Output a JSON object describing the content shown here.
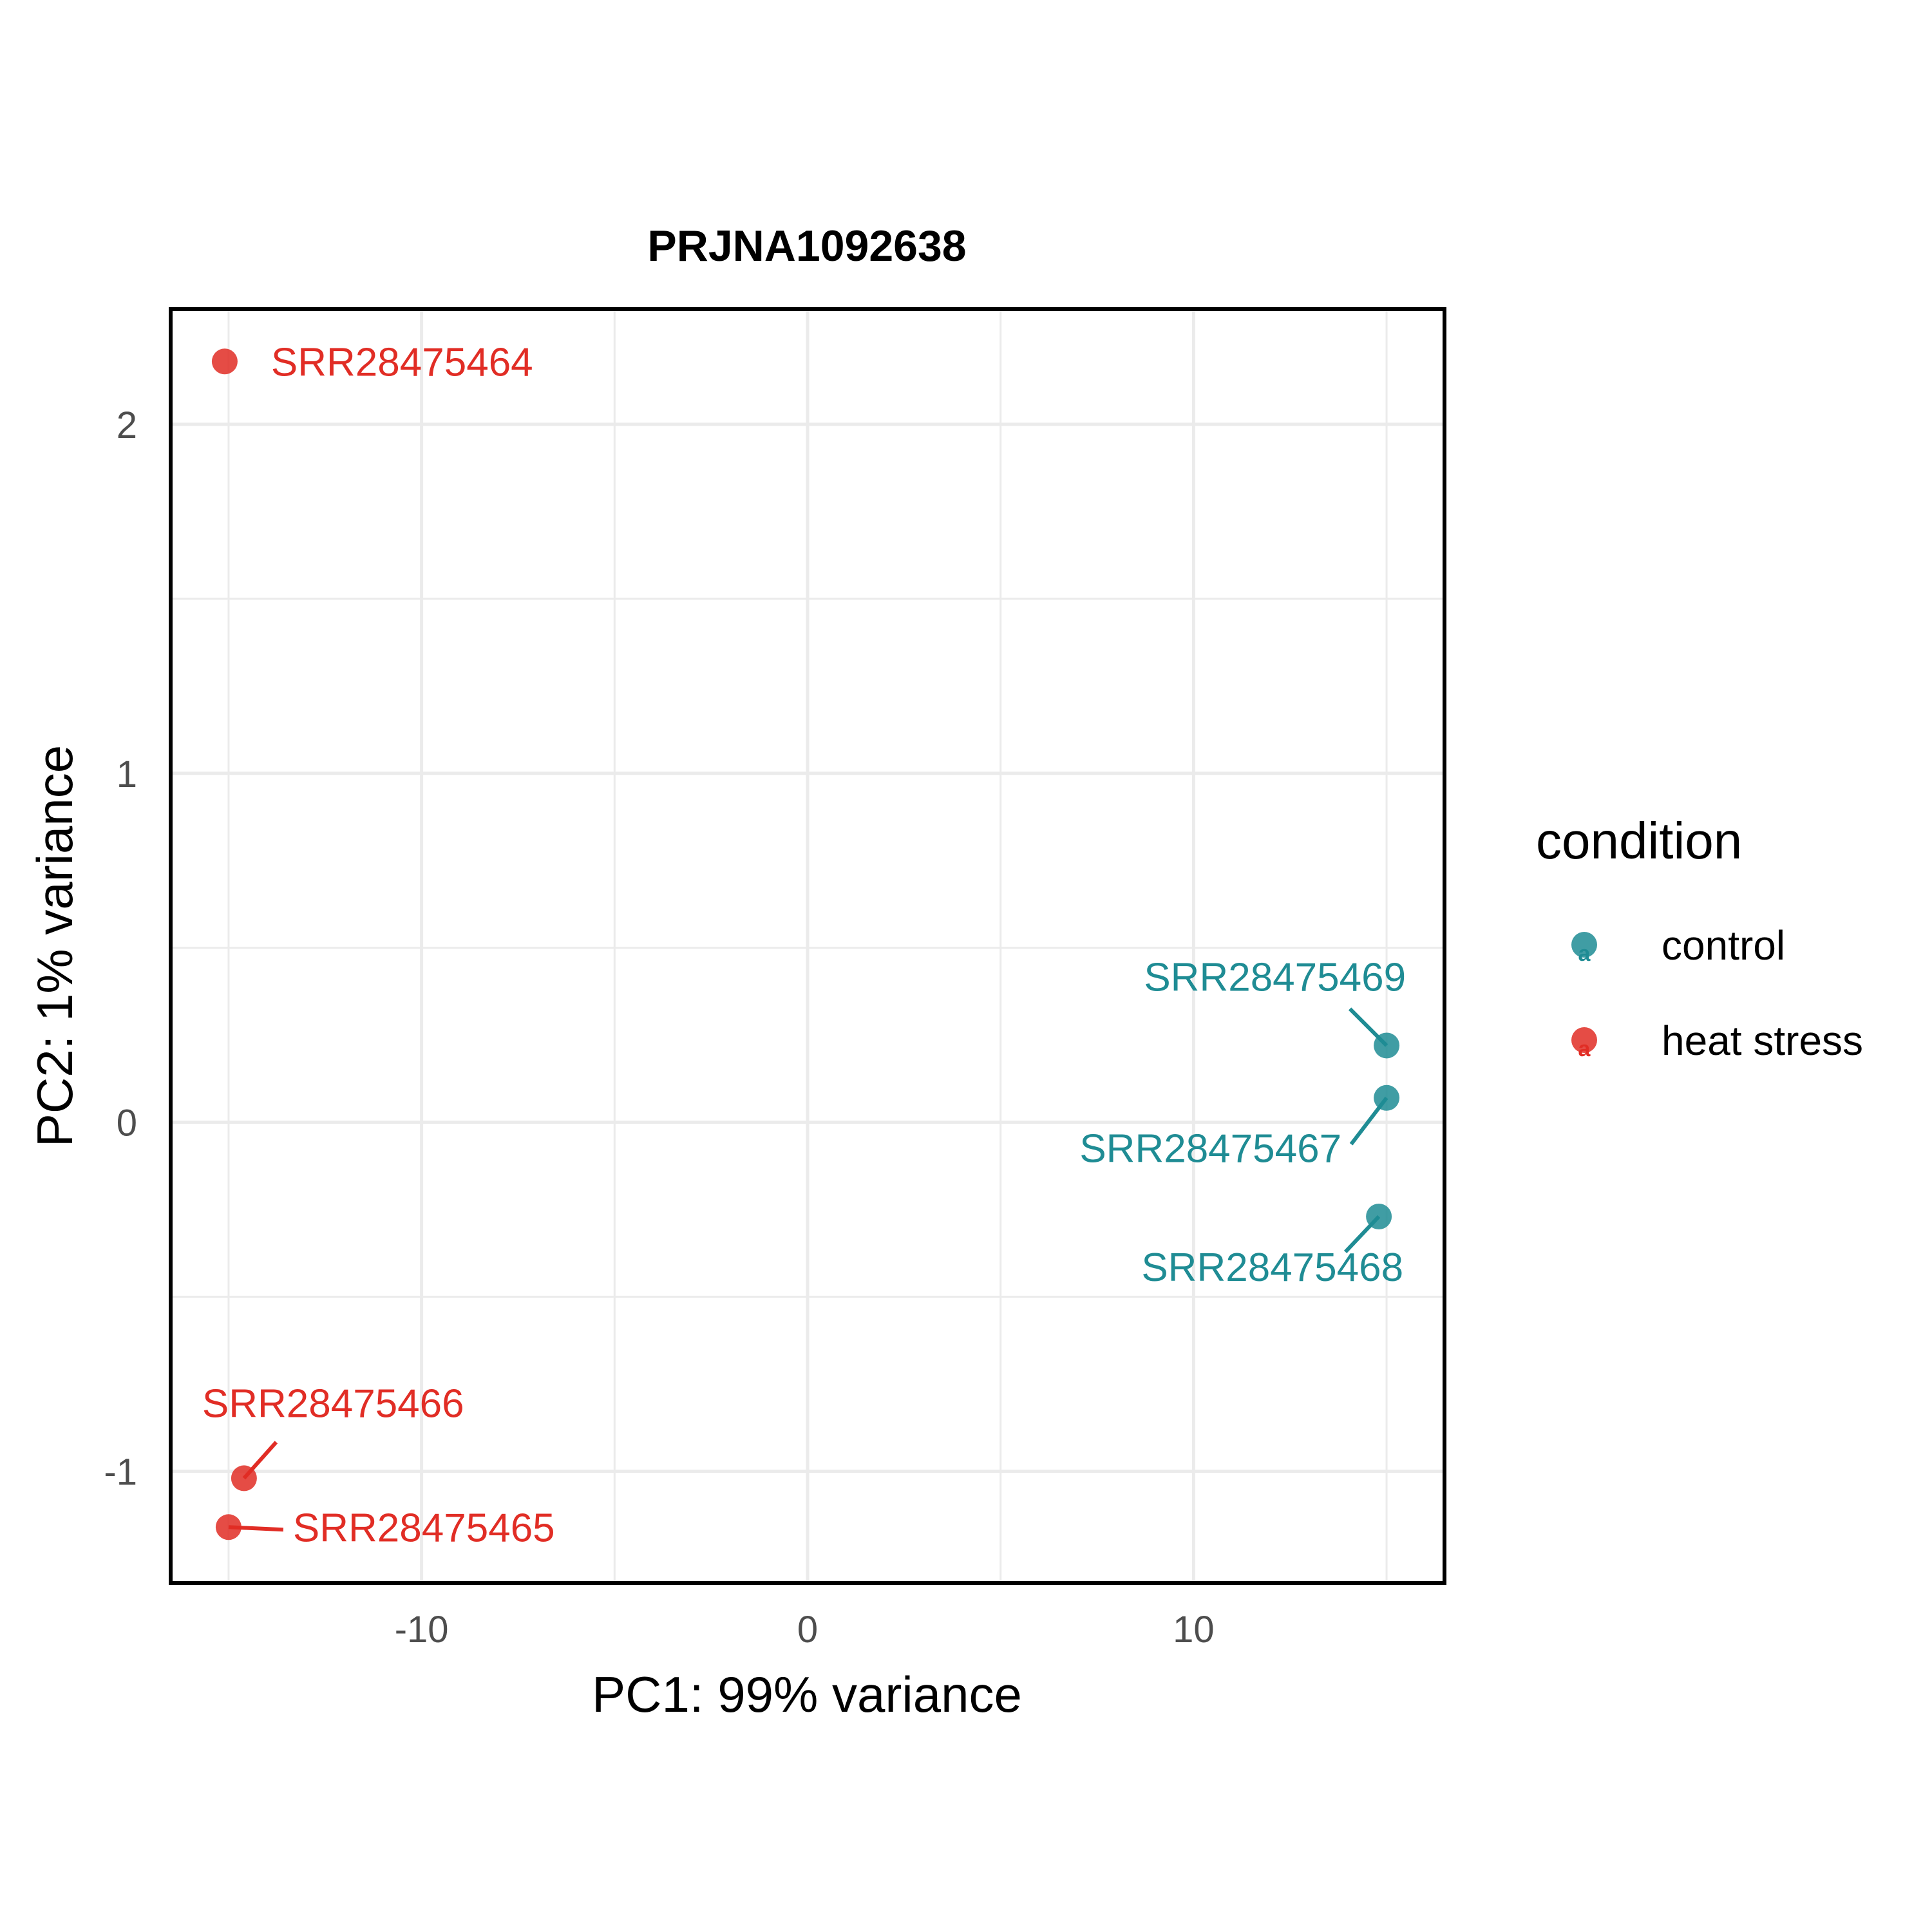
{
  "chart_data": {
    "type": "scatter",
    "title": "PRJNA1092638",
    "xlabel": "PC1: 99% variance",
    "ylabel": "PC2: 1% variance",
    "xlim": [
      -16.5,
      16.5
    ],
    "ylim": [
      -1.32,
      2.33
    ],
    "x_ticks": [
      -10,
      0,
      10
    ],
    "y_ticks": [
      -1,
      0,
      1,
      2
    ],
    "x_tick_labels": [
      "-10",
      "0",
      "10"
    ],
    "y_tick_labels": [
      "-1",
      "0",
      "1",
      "2"
    ],
    "grid": true,
    "legend": {
      "title": "condition",
      "position": "right",
      "entries": [
        {
          "label": "control",
          "color": "#1f8c94"
        },
        {
          "label": "heat stress",
          "color": "#e12d25"
        }
      ]
    },
    "series": [
      {
        "name": "control",
        "color": "#1f8c94",
        "points": [
          {
            "label": "SRR28475469",
            "x": 15.0,
            "y": 0.22
          },
          {
            "label": "SRR28475467",
            "x": 15.0,
            "y": 0.07
          },
          {
            "label": "SRR28475468",
            "x": 14.8,
            "y": -0.27
          }
        ]
      },
      {
        "name": "heat stress",
        "color": "#e12d25",
        "points": [
          {
            "label": "SRR28475464",
            "x": -15.1,
            "y": 2.18
          },
          {
            "label": "SRR28475466",
            "x": -14.6,
            "y": -1.02
          },
          {
            "label": "SRR28475465",
            "x": -15.0,
            "y": -1.16
          }
        ]
      }
    ]
  }
}
